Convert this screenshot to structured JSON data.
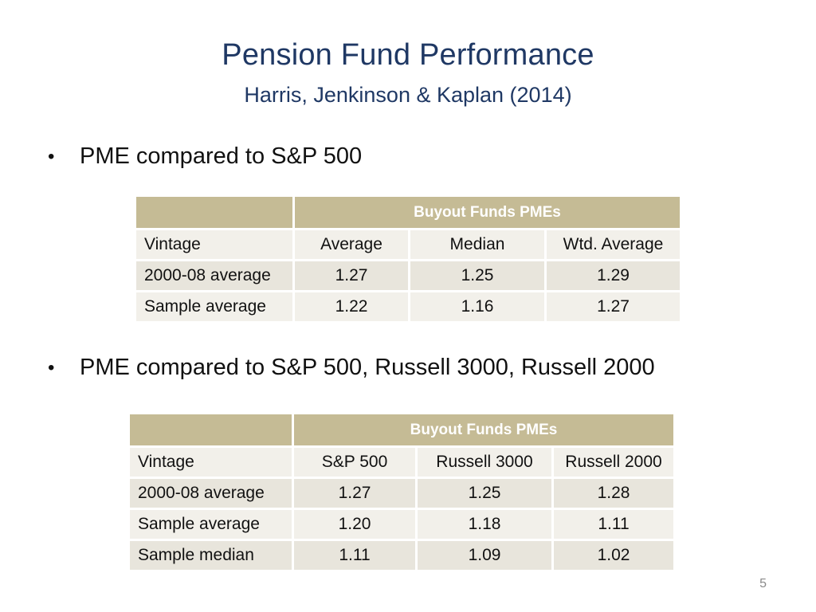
{
  "slide": {
    "title": "Pension Fund Performance",
    "subtitle": "Harris, Jenkinson & Kaplan (2014)",
    "page_number": "5",
    "colors": {
      "title": "#1f3864",
      "table_header": "#c5bb95",
      "row_light": "#f2f0ea",
      "row_dark": "#e8e5dc"
    }
  },
  "bullets": [
    {
      "glyph": "•",
      "text": "PME compared to S&P 500"
    },
    {
      "glyph": "•",
      "text": "PME compared to S&P 500, Russell 3000, Russell 2000"
    }
  ],
  "table1": {
    "group_header": "Buyout Funds PMEs",
    "columns": [
      "Vintage",
      "Average",
      "Median",
      "Wtd. Average"
    ],
    "rows": [
      [
        "2000-08 average",
        "1.27",
        "1.25",
        "1.29"
      ],
      [
        "Sample average",
        "1.22",
        "1.16",
        "1.27"
      ]
    ]
  },
  "table2": {
    "group_header": "Buyout Funds PMEs",
    "columns": [
      "Vintage",
      "S&P 500",
      "Russell 3000",
      "Russell 2000"
    ],
    "rows": [
      [
        "2000-08 average",
        "1.27",
        "1.25",
        "1.28"
      ],
      [
        "Sample average",
        "1.20",
        "1.18",
        "1.11"
      ],
      [
        "Sample median",
        "1.11",
        "1.09",
        "1.02"
      ]
    ]
  }
}
